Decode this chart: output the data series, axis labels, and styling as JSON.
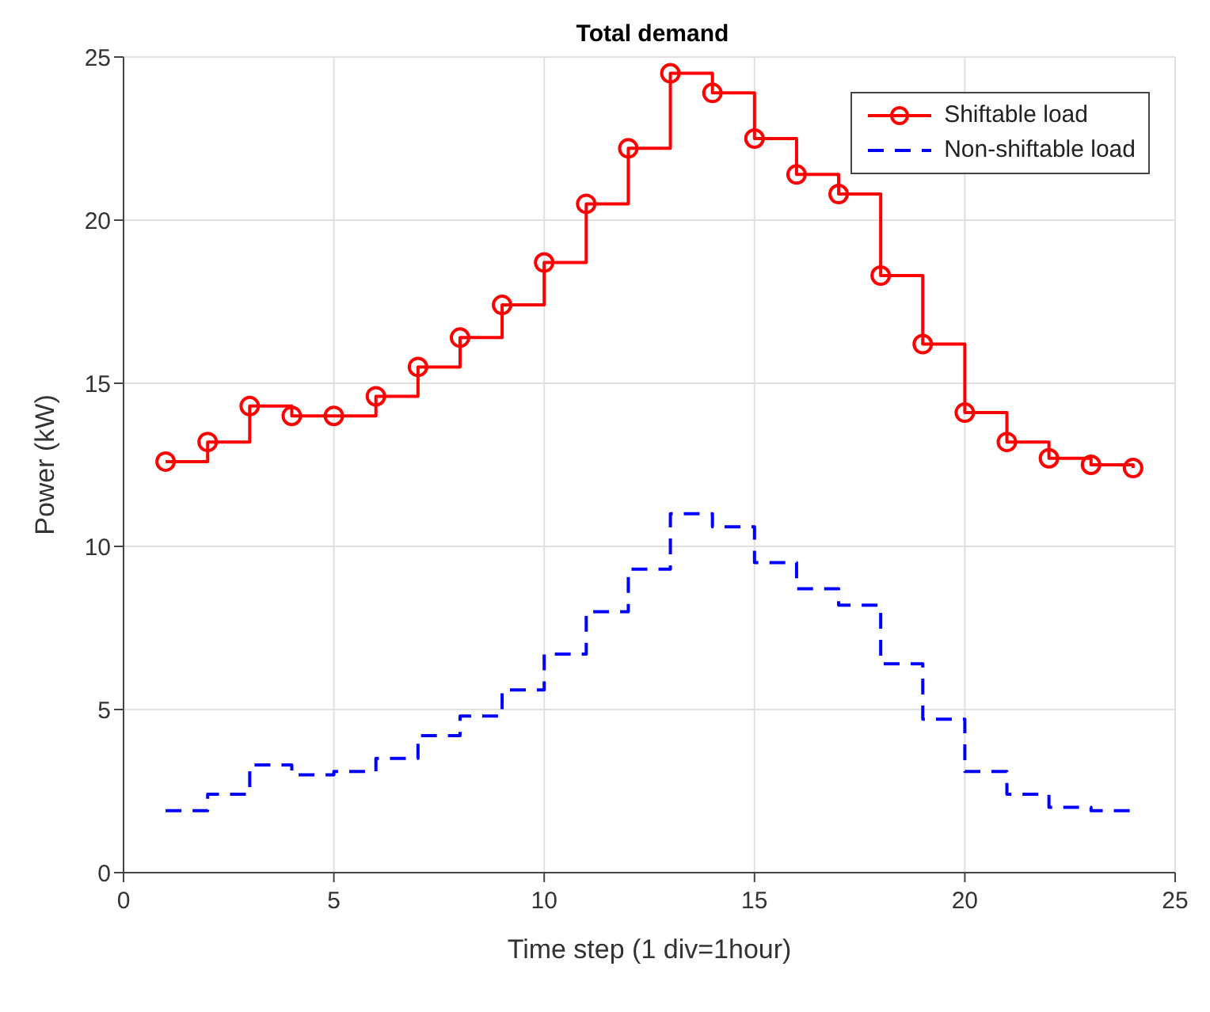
{
  "chart_data": {
    "type": "step",
    "title": "Total demand",
    "xlabel": "Time step (1 div=1hour)",
    "ylabel": "Power (kW)",
    "x": [
      1,
      2,
      3,
      4,
      5,
      6,
      7,
      8,
      9,
      10,
      11,
      12,
      13,
      14,
      15,
      16,
      17,
      18,
      19,
      20,
      21,
      22,
      23,
      24
    ],
    "series": [
      {
        "name": "Shiftable load",
        "color": "#ff0000",
        "marker": "circle",
        "line_style": "solid",
        "values": [
          12.6,
          13.2,
          14.3,
          14.0,
          14.0,
          14.6,
          15.5,
          16.4,
          17.4,
          18.7,
          20.5,
          22.2,
          24.5,
          23.9,
          22.5,
          21.4,
          20.8,
          18.3,
          16.2,
          14.1,
          13.2,
          12.7,
          12.5,
          12.4
        ]
      },
      {
        "name": "Non-shiftable load",
        "color": "#0000ff",
        "marker": "none",
        "line_style": "dashed",
        "values": [
          1.9,
          2.4,
          3.3,
          3.0,
          3.1,
          3.5,
          4.2,
          4.8,
          5.6,
          6.7,
          8.0,
          9.3,
          11.0,
          10.6,
          9.5,
          8.7,
          8.2,
          6.4,
          4.7,
          3.1,
          2.4,
          2.0,
          1.9,
          1.9
        ]
      }
    ],
    "xlim": [
      0,
      25
    ],
    "xticks": [
      0,
      5,
      10,
      15,
      20,
      25
    ],
    "ylim": [
      0,
      25
    ],
    "yticks": [
      0,
      5,
      10,
      15,
      20,
      25
    ],
    "grid": true,
    "legend": "top right"
  }
}
